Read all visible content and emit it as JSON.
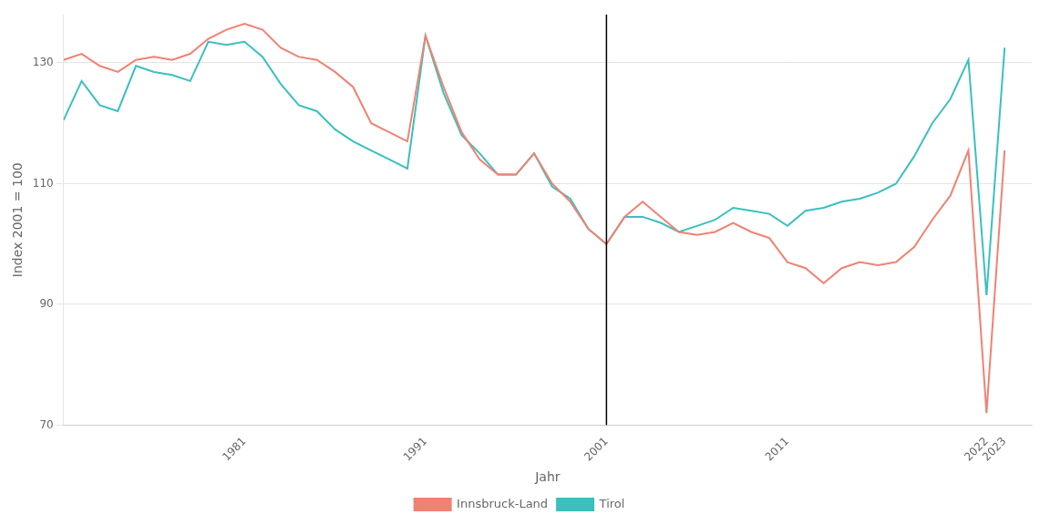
{
  "chart_data": {
    "type": "line",
    "xlabel": "Jahr",
    "ylabel": "Index 2001 = 100",
    "x": [
      1971,
      1972,
      1973,
      1974,
      1975,
      1976,
      1977,
      1978,
      1979,
      1980,
      1981,
      1982,
      1983,
      1984,
      1985,
      1986,
      1987,
      1988,
      1989,
      1990,
      1991,
      1992,
      1993,
      1994,
      1995,
      1996,
      1997,
      1998,
      1999,
      2000,
      2001,
      2002,
      2003,
      2004,
      2005,
      2006,
      2007,
      2008,
      2009,
      2010,
      2011,
      2012,
      2013,
      2014,
      2015,
      2016,
      2017,
      2018,
      2019,
      2020,
      2021,
      2022,
      2023
    ],
    "series": [
      {
        "name": "Innsbruck-Land",
        "color": "#F08272",
        "values": [
          130.5,
          131.5,
          129.5,
          128.5,
          130.5,
          131.0,
          130.5,
          131.5,
          134.0,
          135.5,
          136.5,
          135.5,
          132.5,
          131.0,
          130.5,
          128.5,
          126.0,
          120.0,
          118.5,
          117.0,
          134.5,
          126.0,
          118.5,
          114.0,
          111.5,
          111.5,
          115.0,
          110.0,
          107.0,
          102.5,
          100.0,
          104.5,
          107.0,
          104.5,
          102.0,
          101.5,
          102.0,
          103.5,
          102.0,
          101.0,
          97.0,
          96.0,
          93.5,
          96.0,
          97.0,
          96.5,
          97.0,
          99.5,
          104.0,
          108.0,
          115.5,
          72.0,
          115.5
        ]
      },
      {
        "name": "Tirol",
        "color": "#3BBFBF",
        "values": [
          120.5,
          127.0,
          123.0,
          122.0,
          129.5,
          128.5,
          128.0,
          127.0,
          133.5,
          133.0,
          133.5,
          131.0,
          126.5,
          123.0,
          122.0,
          119.0,
          117.0,
          115.5,
          114.0,
          112.5,
          134.5,
          125.0,
          118.0,
          115.0,
          111.5,
          111.5,
          115.0,
          109.5,
          107.5,
          102.5,
          100.0,
          104.5,
          104.5,
          103.5,
          102.0,
          103.0,
          104.0,
          106.0,
          105.5,
          105.0,
          103.0,
          105.5,
          106.0,
          107.0,
          107.5,
          108.5,
          110.0,
          114.5,
          120.0,
          124.0,
          130.5,
          91.5,
          132.5
        ]
      }
    ],
    "xlim": [
      1971,
      2024.5
    ],
    "xticks": [
      1981,
      1991,
      2001,
      2011,
      2022,
      2023
    ],
    "ylim": [
      70,
      138
    ],
    "yticks": [
      70,
      90,
      110,
      130
    ],
    "vlines": [
      2001
    ],
    "grid": "y",
    "legend": "bottom"
  }
}
